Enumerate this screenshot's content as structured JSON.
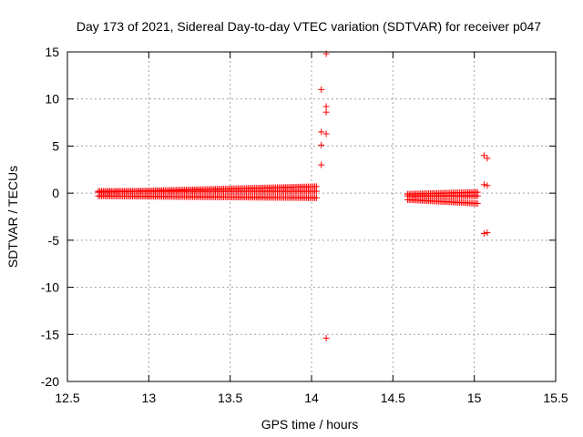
{
  "chart_data": {
    "type": "scatter",
    "title": "Day 173 of 2021, Sidereal Day-to-day VTEC variation (SDTVAR) for receiver p047",
    "xlabel": "GPS time / hours",
    "ylabel": "SDTVAR / TECUs",
    "xlim": [
      12.5,
      15.5
    ],
    "ylim": [
      -20,
      15
    ],
    "xticks": [
      12.5,
      13,
      13.5,
      14,
      14.5,
      15,
      15.5
    ],
    "xtick_labels": [
      "12.5",
      "13",
      "13.5",
      "14",
      "14.5",
      "15",
      "15.5"
    ],
    "yticks": [
      -20,
      -15,
      -10,
      -5,
      0,
      5,
      10,
      15
    ],
    "ytick_labels": [
      "-20",
      "-15",
      "-10",
      "-5",
      "0",
      "5",
      "10",
      "15"
    ],
    "grid": true,
    "marker_color": "#ff0000",
    "bands": [
      {
        "name": "band-1",
        "x_start": 12.69,
        "x_end": 14.03,
        "step": 0.01,
        "y_low_start": -0.3,
        "y_low_end": -0.5,
        "y_high_start": 0.1,
        "y_high_end": 0.7,
        "y_mid": 0.2
      },
      {
        "name": "band-2",
        "x_start": 14.59,
        "x_end": 15.02,
        "step": 0.01,
        "y_low_start": -0.7,
        "y_low_end": -1.1,
        "y_high_start": -0.1,
        "y_high_end": 0.1,
        "y_mid": -0.3
      }
    ],
    "outliers": [
      {
        "x": 14.09,
        "y": 14.8
      },
      {
        "x": 14.06,
        "y": 11.0
      },
      {
        "x": 14.09,
        "y": 9.2
      },
      {
        "x": 14.09,
        "y": 8.6
      },
      {
        "x": 14.06,
        "y": 6.5
      },
      {
        "x": 14.09,
        "y": 6.3
      },
      {
        "x": 14.06,
        "y": 5.1
      },
      {
        "x": 14.06,
        "y": 3.0
      },
      {
        "x": 14.09,
        "y": -15.4
      },
      {
        "x": 15.06,
        "y": 4.0
      },
      {
        "x": 15.08,
        "y": 3.7
      },
      {
        "x": 15.06,
        "y": 0.9
      },
      {
        "x": 15.08,
        "y": 0.8
      },
      {
        "x": 15.06,
        "y": -4.3
      },
      {
        "x": 15.08,
        "y": -4.2
      }
    ]
  }
}
